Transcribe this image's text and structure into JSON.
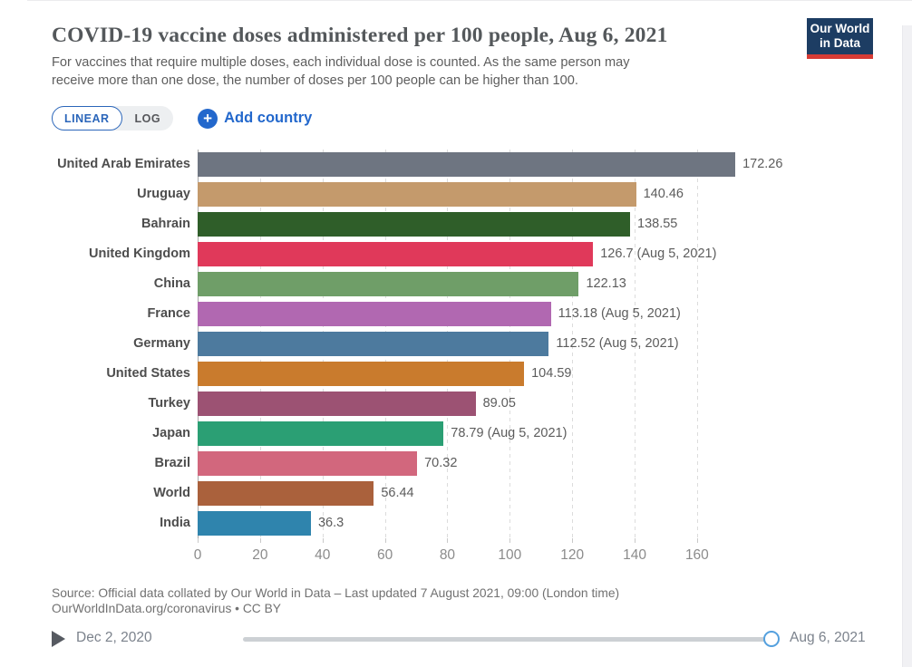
{
  "header": {
    "title": "COVID-19 vaccine doses administered per 100 people, Aug 6, 2021",
    "subtitle_line1": "For vaccines that require multiple doses, each individual dose is counted. As the same person may",
    "subtitle_line2": "receive more than one dose, the number of doses per 100 people can be higher than 100.",
    "logo_line1": "Our World",
    "logo_line2": "in Data",
    "logo_bg": "#1d3d63",
    "logo_accent": "#d73b34"
  },
  "controls": {
    "linear_label": "LINEAR",
    "log_label": "LOG",
    "plus_glyph": "+",
    "add_country_label": "Add country",
    "accent_blue": "#2368cc"
  },
  "chart_data": {
    "type": "bar",
    "orientation": "horizontal",
    "title": "COVID-19 vaccine doses administered per 100 people, Aug 6, 2021",
    "xlabel": "",
    "ylabel": "",
    "xlim": [
      0,
      174
    ],
    "x_ticks": [
      0,
      20,
      40,
      60,
      80,
      100,
      120,
      140,
      160
    ],
    "grid": true,
    "legend": false,
    "bars": [
      {
        "label": "United Arab Emirates",
        "value": 172.26,
        "display": "172.26",
        "color": "#6e7581"
      },
      {
        "label": "Uruguay",
        "value": 140.46,
        "display": "140.46",
        "color": "#c49a6c"
      },
      {
        "label": "Bahrain",
        "value": 138.55,
        "display": "138.55",
        "color": "#2f5e29"
      },
      {
        "label": "United Kingdom",
        "value": 126.7,
        "display": "126.7 (Aug 5, 2021)",
        "color": "#e0395a"
      },
      {
        "label": "China",
        "value": 122.13,
        "display": "122.13",
        "color": "#6f9e68"
      },
      {
        "label": "France",
        "value": 113.18,
        "display": "113.18 (Aug 5, 2021)",
        "color": "#b168b1"
      },
      {
        "label": "Germany",
        "value": 112.52,
        "display": "112.52 (Aug 5, 2021)",
        "color": "#4d7a9e"
      },
      {
        "label": "United States",
        "value": 104.59,
        "display": "104.59",
        "color": "#c97b2d"
      },
      {
        "label": "Turkey",
        "value": 89.05,
        "display": "89.05",
        "color": "#9c5273"
      },
      {
        "label": "Japan",
        "value": 78.79,
        "display": "78.79 (Aug 5, 2021)",
        "color": "#2b9f74"
      },
      {
        "label": "Brazil",
        "value": 70.32,
        "display": "70.32",
        "color": "#d2677d"
      },
      {
        "label": "World",
        "value": 56.44,
        "display": "56.44",
        "color": "#aa613c"
      },
      {
        "label": "India",
        "value": 36.3,
        "display": "36.3",
        "color": "#2f84ad"
      }
    ]
  },
  "footer": {
    "source_line1": "Source: Official data collated by Our World in Data – Last updated 7 August 2021, 09:00 (London time)",
    "source_line2": "OurWorldInData.org/coronavirus • CC BY"
  },
  "timeline": {
    "start_label": "Dec 2, 2020",
    "end_label": "Aug 6, 2021"
  }
}
